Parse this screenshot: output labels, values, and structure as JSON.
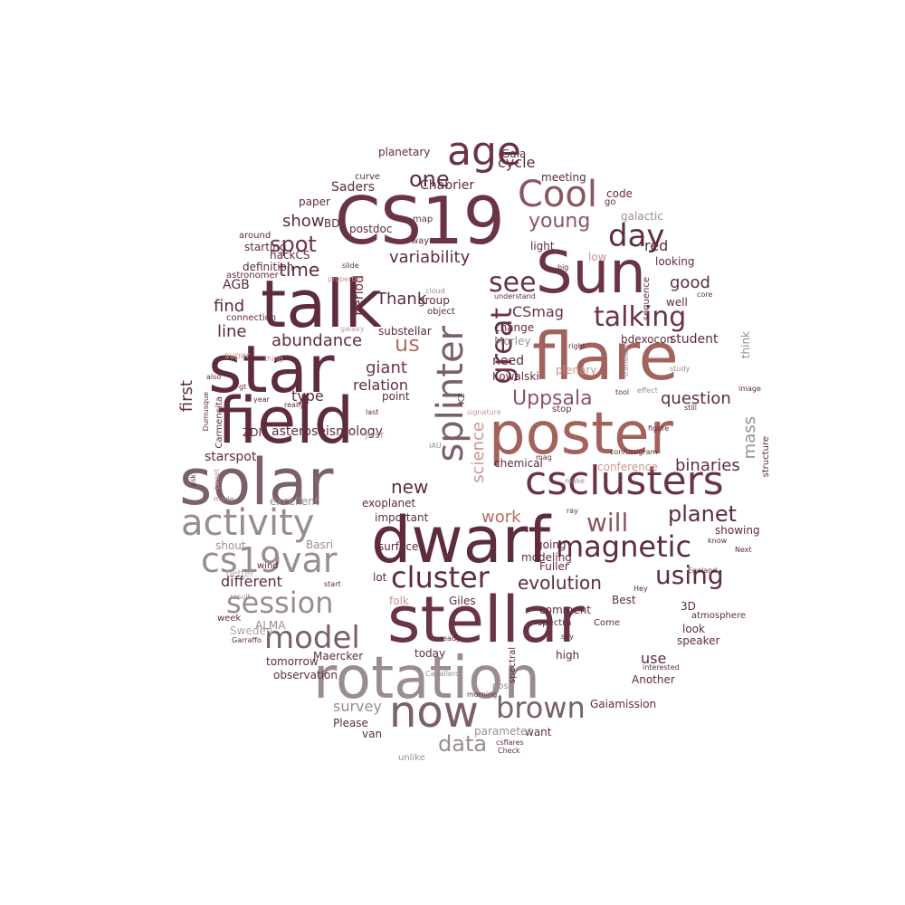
{
  "palette": [
    "#5e2c3b",
    "#6b3442",
    "#7a4650",
    "#8a565e",
    "#9a7f85",
    "#b56d62",
    "#c99590",
    "#b0a3a6"
  ],
  "words": [
    {
      "text": "CS19",
      "color": "#6b3442"
    },
    {
      "text": "Sun",
      "color": "#6b3442"
    },
    {
      "text": "talk",
      "color": "#5e2c3b"
    },
    {
      "text": "star",
      "color": "#5e2c3b"
    },
    {
      "text": "flare",
      "color": "#a3625c"
    },
    {
      "text": "field",
      "color": "#5e2c3b"
    },
    {
      "text": "poster",
      "color": "#a3625c"
    },
    {
      "text": "solar",
      "color": "#7a6068"
    },
    {
      "text": "dwarf",
      "color": "#5e2c3b"
    },
    {
      "text": "stellar",
      "color": "#6b3442"
    },
    {
      "text": "rotation",
      "color": "#9a8c90"
    },
    {
      "text": "Cool",
      "color": "#8a565e"
    },
    {
      "text": "age",
      "color": "#6b3442"
    },
    {
      "text": "see",
      "color": "#6b3442"
    },
    {
      "text": "day",
      "color": "#5e2c3b"
    },
    {
      "text": "talking",
      "color": "#6b3442"
    },
    {
      "text": "csclusters",
      "color": "#6b3442"
    },
    {
      "text": "splinter",
      "color": "#7a6068"
    },
    {
      "text": "great",
      "color": "#6b3442"
    },
    {
      "text": "activity",
      "color": "#9a8c90"
    },
    {
      "text": "cs19var",
      "color": "#9a8c90"
    },
    {
      "text": "magnetic",
      "color": "#5e2c3b"
    },
    {
      "text": "session",
      "color": "#9a8c90"
    },
    {
      "text": "model",
      "color": "#7a6068"
    },
    {
      "text": "cluster",
      "color": "#5e2c3b"
    },
    {
      "text": "now",
      "color": "#7a6068"
    },
    {
      "text": "brown",
      "color": "#7a6068"
    },
    {
      "text": "using",
      "color": "#5e2c3b"
    },
    {
      "text": "will",
      "color": "#8a565e"
    },
    {
      "text": "planet",
      "color": "#5e2c3b"
    },
    {
      "text": "one",
      "color": "#5e2c3b"
    },
    {
      "text": "young",
      "color": "#8a565e"
    },
    {
      "text": "spot",
      "color": "#6b3442"
    },
    {
      "text": "time",
      "color": "#5e2c3b"
    },
    {
      "text": "Uppsala",
      "color": "#8a565e"
    },
    {
      "text": "us",
      "color": "#b56d62"
    },
    {
      "text": "mass",
      "color": "#9a8c90"
    },
    {
      "text": "data",
      "color": "#9a8c90"
    },
    {
      "text": "science",
      "color": "#c99590"
    },
    {
      "text": "first",
      "color": "#5e2c3b"
    },
    {
      "text": "new",
      "color": "#5e2c3b"
    },
    {
      "text": "work",
      "color": "#b56d62"
    },
    {
      "text": "evolution",
      "color": "#5e2c3b"
    },
    {
      "text": "abundance",
      "color": "#5e2c3b"
    },
    {
      "text": "giant",
      "color": "#6b3442"
    },
    {
      "text": "binaries",
      "color": "#5e2c3b"
    },
    {
      "text": "question",
      "color": "#5e2c3b"
    },
    {
      "text": "variability",
      "color": "#5e2c3b"
    },
    {
      "text": "CSmag",
      "color": "#6b3442"
    },
    {
      "text": "cycle",
      "color": "#5e2c3b"
    },
    {
      "text": "Chabrier",
      "color": "#5e2c3b"
    },
    {
      "text": "show",
      "color": "#5e2c3b"
    },
    {
      "text": "Thank",
      "color": "#5e2c3b"
    },
    {
      "text": "period",
      "color": "#5e2c3b"
    },
    {
      "text": "red",
      "color": "#5e2c3b"
    },
    {
      "text": "good",
      "color": "#5e2c3b"
    },
    {
      "text": "line",
      "color": "#5e2c3b"
    },
    {
      "text": "find",
      "color": "#5e2c3b"
    },
    {
      "text": "relation",
      "color": "#5e2c3b"
    },
    {
      "text": "type",
      "color": "#5e2c3b"
    },
    {
      "text": "different",
      "color": "#5e2c3b"
    },
    {
      "text": "survey",
      "color": "#9a8c90"
    },
    {
      "text": "use",
      "color": "#5e2c3b"
    },
    {
      "text": "asteroseismology",
      "color": "#5e2c3b"
    },
    {
      "text": "starspot",
      "color": "#5e2c3b"
    },
    {
      "text": "need",
      "color": "#5e2c3b"
    },
    {
      "text": "student",
      "color": "#5e2c3b"
    },
    {
      "text": "Saders",
      "color": "#5e2c3b"
    },
    {
      "text": "BD",
      "color": "#5e2c3b"
    },
    {
      "text": "postdoc",
      "color": "#5e2c3b"
    },
    {
      "text": "AGB",
      "color": "#5e2c3b"
    },
    {
      "text": "hackCS",
      "color": "#5e2c3b"
    },
    {
      "text": "meeting",
      "color": "#5e2c3b"
    },
    {
      "text": "Gaia",
      "color": "#5e2c3b"
    },
    {
      "text": "planetary",
      "color": "#5e2c3b"
    },
    {
      "text": "curve",
      "color": "#5e2c3b"
    },
    {
      "text": "paper",
      "color": "#5e2c3b"
    },
    {
      "text": "map",
      "color": "#5e2c3b"
    },
    {
      "text": "code",
      "color": "#5e2c3b"
    },
    {
      "text": "go",
      "color": "#5e2c3b"
    },
    {
      "text": "galactic",
      "color": "#9a8c90"
    },
    {
      "text": "light",
      "color": "#5e2c3b"
    },
    {
      "text": "low",
      "color": "#c99590"
    },
    {
      "text": "looking",
      "color": "#5e2c3b"
    },
    {
      "text": "well",
      "color": "#5e2c3b"
    },
    {
      "text": "core",
      "color": "#5e2c3b"
    },
    {
      "text": "bdexocon",
      "color": "#5e2c3b"
    },
    {
      "text": "Morley",
      "color": "#9a8c90"
    },
    {
      "text": "change",
      "color": "#5e2c3b"
    },
    {
      "text": "group",
      "color": "#5e2c3b"
    },
    {
      "text": "object",
      "color": "#5e2c3b"
    },
    {
      "text": "substellar",
      "color": "#5e2c3b"
    },
    {
      "text": "Kowalski",
      "color": "#5e2c3b"
    },
    {
      "text": "plenary",
      "color": "#c99590"
    },
    {
      "text": "point",
      "color": "#5e2c3b"
    },
    {
      "text": "K2",
      "color": "#5e2c3b"
    },
    {
      "text": "stop",
      "color": "#5e2c3b"
    },
    {
      "text": "chemical",
      "color": "#5e2c3b"
    },
    {
      "text": "conference",
      "color": "#c99590"
    },
    {
      "text": "exoplanet",
      "color": "#5e2c3b"
    },
    {
      "text": "important",
      "color": "#5e2c3b"
    },
    {
      "text": "surface",
      "color": "#5e2c3b"
    },
    {
      "text": "going",
      "color": "#5e2c3b"
    },
    {
      "text": "modeling",
      "color": "#5e2c3b"
    },
    {
      "text": "Fuller",
      "color": "#5e2c3b"
    },
    {
      "text": "lot",
      "color": "#5e2c3b"
    },
    {
      "text": "folk",
      "color": "#c99590"
    },
    {
      "text": "Giles",
      "color": "#5e2c3b"
    },
    {
      "text": "comment",
      "color": "#5e2c3b"
    },
    {
      "text": "spectra",
      "color": "#5e2c3b"
    },
    {
      "text": "Come",
      "color": "#5e2c3b"
    },
    {
      "text": "Best",
      "color": "#5e2c3b"
    },
    {
      "text": "3D",
      "color": "#5e2c3b"
    },
    {
      "text": "atmosphere",
      "color": "#5e2c3b"
    },
    {
      "text": "look",
      "color": "#5e2c3b"
    },
    {
      "text": "speaker",
      "color": "#5e2c3b"
    },
    {
      "text": "showing",
      "color": "#5e2c3b"
    },
    {
      "text": "know",
      "color": "#5e2c3b"
    },
    {
      "text": "Next",
      "color": "#5e2c3b"
    },
    {
      "text": "Egeland",
      "color": "#5e2c3b"
    },
    {
      "text": "Hey",
      "color": "#5e2c3b"
    },
    {
      "text": "interested",
      "color": "#5e2c3b"
    },
    {
      "text": "Another",
      "color": "#5e2c3b"
    },
    {
      "text": "Gaiamission",
      "color": "#5e2c3b"
    },
    {
      "text": "high",
      "color": "#5e2c3b"
    },
    {
      "text": "want",
      "color": "#5e2c3b"
    },
    {
      "text": "csflares",
      "color": "#5e2c3b"
    },
    {
      "text": "Check",
      "color": "#5e2c3b"
    },
    {
      "text": "parameter",
      "color": "#9a8c90"
    },
    {
      "text": "post",
      "color": "#9a8c90"
    },
    {
      "text": "spectral",
      "color": "#5e2c3b"
    },
    {
      "text": "today",
      "color": "#5e2c3b"
    },
    {
      "text": "Maercker",
      "color": "#5e2c3b"
    },
    {
      "text": "tomorrow",
      "color": "#5e2c3b"
    },
    {
      "text": "observation",
      "color": "#5e2c3b"
    },
    {
      "text": "Please",
      "color": "#5e2c3b"
    },
    {
      "text": "van",
      "color": "#5e2c3b"
    },
    {
      "text": "unlike",
      "color": "#9a8c90"
    },
    {
      "text": "Sweden",
      "color": "#b0a3a6"
    },
    {
      "text": "ALMA",
      "color": "#9a8c90"
    },
    {
      "text": "week",
      "color": "#5e2c3b"
    },
    {
      "text": "Garraffo",
      "color": "#5e2c3b"
    },
    {
      "text": "result",
      "color": "#9a8c90"
    },
    {
      "text": "better",
      "color": "#b0a3a6"
    },
    {
      "text": "shout",
      "color": "#9a8c90"
    },
    {
      "text": "Basri",
      "color": "#9a8c90"
    },
    {
      "text": "wind",
      "color": "#5e2c3b"
    },
    {
      "text": "start",
      "color": "#5e2c3b"
    },
    {
      "text": "excellent",
      "color": "#9a8c90"
    },
    {
      "text": "mode",
      "color": "#9a8c90"
    },
    {
      "text": "tweet",
      "color": "#c99590"
    },
    {
      "text": "ask",
      "color": "#5e2c3b"
    },
    {
      "text": "ZDI",
      "color": "#5e2c3b"
    },
    {
      "text": "Carmencita",
      "color": "#5e2c3b"
    },
    {
      "text": "Dumusque",
      "color": "#5e2c3b"
    },
    {
      "text": "also",
      "color": "#5e2c3b"
    },
    {
      "text": "gt",
      "color": "#5e2c3b"
    },
    {
      "text": "year",
      "color": "#5e2c3b"
    },
    {
      "text": "really",
      "color": "#5e2c3b"
    },
    {
      "text": "last",
      "color": "#5e2c3b"
    },
    {
      "text": "JWST",
      "color": "#9a8c90"
    },
    {
      "text": "IAU",
      "color": "#9a8c90"
    },
    {
      "text": "mag",
      "color": "#5e2c3b"
    },
    {
      "text": "signature",
      "color": "#c99590"
    },
    {
      "text": "thing",
      "color": "#c99590"
    },
    {
      "text": "super",
      "color": "#c99590"
    },
    {
      "text": "connection",
      "color": "#5e2c3b"
    },
    {
      "text": "galaxy",
      "color": "#c99590"
    },
    {
      "text": "astronomer",
      "color": "#5e2c3b"
    },
    {
      "text": "definition",
      "color": "#5e2c3b"
    },
    {
      "text": "properties",
      "color": "#c99590"
    },
    {
      "text": "starting",
      "color": "#5e2c3b"
    },
    {
      "text": "slide",
      "color": "#5e2c3b"
    },
    {
      "text": "around",
      "color": "#5e2c3b"
    },
    {
      "text": "way",
      "color": "#5e2c3b"
    },
    {
      "text": "cloud",
      "color": "#9a8c90"
    },
    {
      "text": "understand",
      "color": "#5e2c3b"
    },
    {
      "text": "big",
      "color": "#5e2c3b"
    },
    {
      "text": "sequence",
      "color": "#5e2c3b"
    },
    {
      "text": "transition",
      "color": "#9a8c90"
    },
    {
      "text": "right",
      "color": "#5e2c3b"
    },
    {
      "text": "think",
      "color": "#9a8c90"
    },
    {
      "text": "study",
      "color": "#9a8c90"
    },
    {
      "text": "tool",
      "color": "#5e2c3b"
    },
    {
      "text": "effect",
      "color": "#9a8c90"
    },
    {
      "text": "image",
      "color": "#5e2c3b"
    },
    {
      "text": "still",
      "color": "#5e2c3b"
    },
    {
      "text": "structure",
      "color": "#5e2c3b"
    },
    {
      "text": "figure",
      "color": "#5e2c3b"
    },
    {
      "text": "confusogram",
      "color": "#5e2c3b"
    },
    {
      "text": "make",
      "color": "#9a8c90"
    },
    {
      "text": "ray",
      "color": "#5e2c3b"
    },
    {
      "text": "say",
      "color": "#5e2c3b"
    },
    {
      "text": "ready",
      "color": "#5e2c3b"
    },
    {
      "text": "Caballero",
      "color": "#9a8c90"
    },
    {
      "text": "morning",
      "color": "#5e2c3b"
    },
    {
      "text": "RV",
      "color": "#5e2c3b"
    },
    {
      "text": "help",
      "color": "#5e2c3b"
    },
    {
      "text": "al",
      "color": "#5e2c3b"
    }
  ]
}
